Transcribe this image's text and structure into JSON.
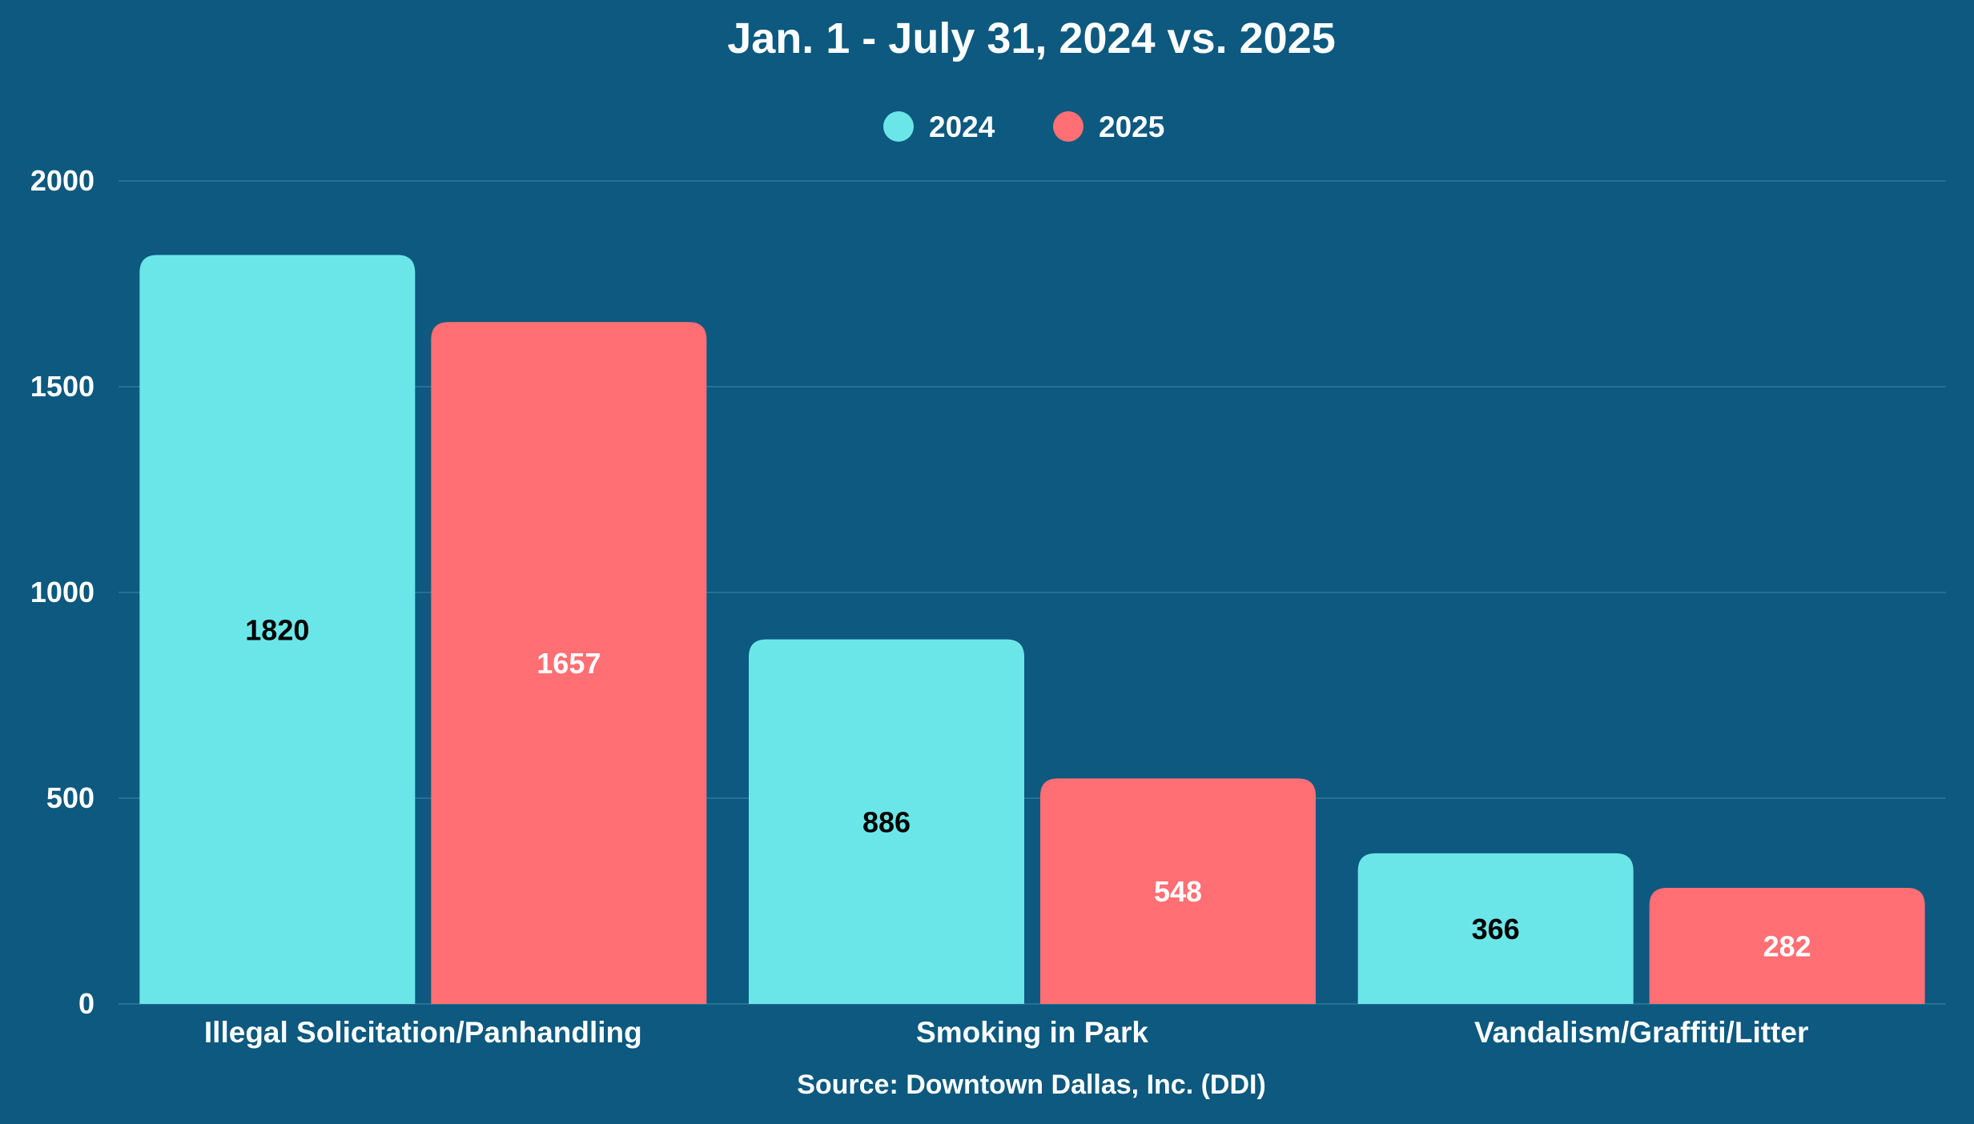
{
  "chart_data": {
    "type": "bar",
    "title": "Jan. 1 - July 31, 2024 vs. 2025",
    "source": "Source: Downtown Dallas, Inc. (DDI)",
    "categories": [
      "Illegal Solicitation/Panhandling",
      "Smoking in Park",
      "Vandalism/Graffiti/Litter"
    ],
    "series": [
      {
        "name": "2024",
        "values": [
          1820,
          886,
          366
        ],
        "color": "#6be6e8",
        "label_color": "#000000"
      },
      {
        "name": "2025",
        "values": [
          1657,
          548,
          282
        ],
        "color": "#ff6f73",
        "label_color": "#ffffff"
      }
    ],
    "ylim": [
      0,
      2000
    ],
    "yticks": [
      0,
      500,
      1000,
      1500,
      2000
    ],
    "grid": true,
    "legend": "top-center",
    "xlabel": "",
    "ylabel": "",
    "colors": {
      "background": "#0d597f",
      "grid": "#2f7a9b",
      "text": "#ffffff"
    }
  }
}
